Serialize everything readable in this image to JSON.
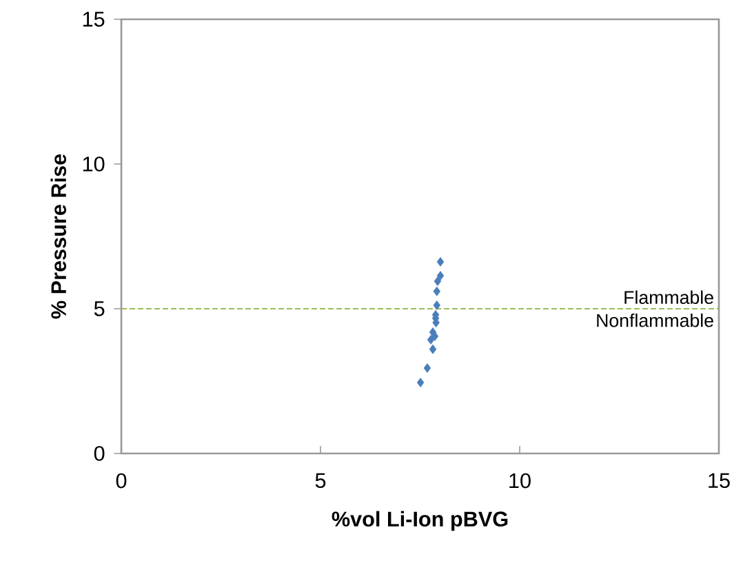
{
  "chart_data": {
    "type": "scatter",
    "xlabel": "%vol Li-Ion pBVG",
    "ylabel": "% Pressure Rise",
    "x": [
      8.01,
      8.01,
      7.94,
      7.92,
      7.92,
      7.89,
      7.89,
      7.9,
      7.82,
      7.87,
      7.77,
      7.82,
      7.68,
      7.51
    ],
    "values": [
      6.62,
      6.14,
      5.95,
      5.6,
      5.12,
      4.79,
      4.67,
      4.52,
      4.19,
      4.05,
      3.93,
      3.6,
      2.95,
      2.45
    ],
    "color": "#4a7ebb",
    "marker": "diamond",
    "xlim": [
      0,
      15
    ],
    "ylim": [
      0,
      15
    ],
    "xticks": [
      0,
      5,
      10,
      15
    ],
    "yticks": [
      0,
      5,
      10,
      15
    ],
    "grid": false,
    "ref_lines": [
      {
        "axis": "y",
        "value": 5,
        "color": "#9bbb59",
        "line_style": "dashed"
      }
    ],
    "annotations": [
      {
        "text": "Flammable",
        "x": 15,
        "y": 5
      },
      {
        "text": "Nonflammable",
        "x": 15,
        "y": 5
      }
    ]
  }
}
